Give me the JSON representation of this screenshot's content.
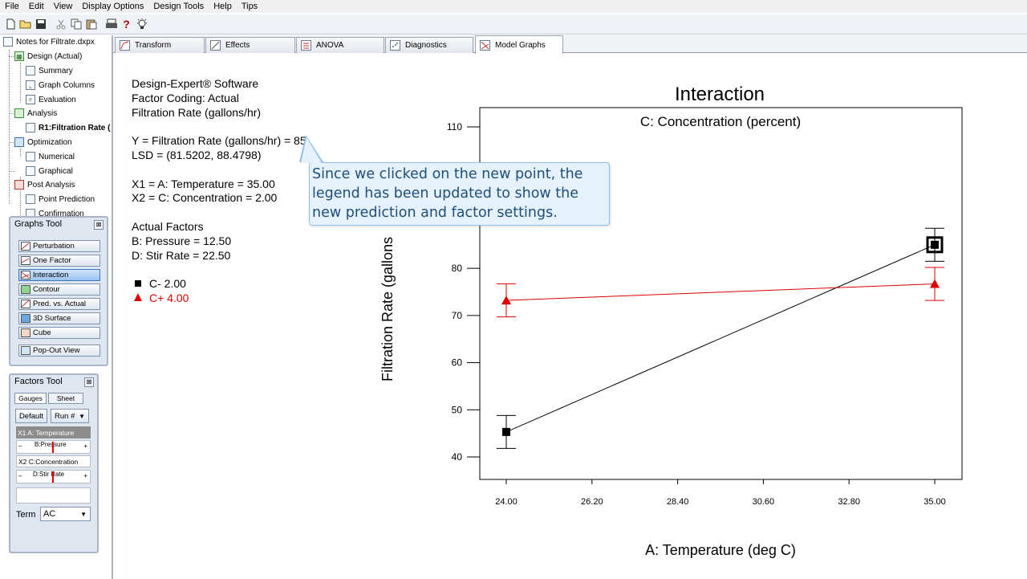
{
  "menu": [
    "File",
    "Edit",
    "View",
    "Display Options",
    "Design Tools",
    "Help",
    "Tips"
  ],
  "toolbar": {
    "icons": [
      "new-icon",
      "open-icon",
      "save-icon",
      "cut-icon",
      "copy-icon",
      "paste-icon",
      "print-icon",
      "help-icon",
      "tip-icon"
    ],
    "help_glyph": "?"
  },
  "tree": {
    "root": "Notes for Filtrate.dxpx",
    "items": [
      "Design (Actual)",
      "Summary",
      "Graph Columns",
      "Evaluation",
      "Analysis",
      "R1:Filtration Rate (",
      "Optimization",
      "Numerical",
      "Graphical",
      "Post Analysis",
      "Point Prediction",
      "Confirmation"
    ]
  },
  "graphs_tool": {
    "title": "Graphs Tool",
    "close": "⊠",
    "buttons": [
      "Perturbation",
      "One Factor",
      "Interaction",
      "Contour",
      "Pred. vs. Actual",
      "3D Surface",
      "Cube"
    ],
    "active": "Interaction",
    "popout": "Pop-Out View"
  },
  "factors_tool": {
    "title": "Factors Tool",
    "close": "⊠",
    "gauges": "Gauges",
    "sheet": "Sheet",
    "default": "Default",
    "run": "Run #",
    "x1": "X1  A: Temperature",
    "pressure": "B:Pressure",
    "x2": "X2  C:Concentration",
    "stir": "D:Stir Rate",
    "minus": "–",
    "plus": "+",
    "term_label": "Term",
    "term_value": "AC"
  },
  "tabs": [
    "Transform",
    "Effects",
    "ANOVA",
    "Diagnostics",
    "Model Graphs"
  ],
  "active_tab": "Model Graphs",
  "legend": {
    "software": "Design-Expert® Software",
    "coding": "Factor Coding: Actual",
    "response": "Filtration Rate (gallons/hr)",
    "y_line": "Y = Filtration Rate (gallons/hr) = 85",
    "lsd": "LSD = (81.5202, 88.4798)",
    "x1": "X1 = A: Temperature = 35.00",
    "x2": "X2 = C: Concentration = 2.00",
    "actual_factors": "Actual Factors",
    "b": "B: Pressure = 12.50",
    "d": "D: Stir Rate = 22.50",
    "c_minus": "C- 2.00",
    "c_plus": "C+ 4.00"
  },
  "callout": {
    "line1": "Since we clicked on the new point, the",
    "line2": "legend has been updated to show the",
    "line3": "new prediction and factor settings."
  },
  "chart_data": {
    "type": "line",
    "title": "Interaction",
    "subtitle": "C: Concentration (percent)",
    "xlabel": "A: Temperature (deg C)",
    "ylabel": "Filtration Rate (gallons",
    "xlim": [
      24.0,
      35.0
    ],
    "ylim": [
      35,
      112
    ],
    "x_ticks": [
      "24.00",
      "26.20",
      "28.40",
      "30.60",
      "32.80",
      "35.00"
    ],
    "y_ticks": [
      40,
      50,
      60,
      70,
      80,
      110
    ],
    "x": [
      24.0,
      35.0
    ],
    "series": [
      {
        "name": "C- 2.00",
        "values": [
          45.3,
          85.0
        ],
        "lsd_low": [
          41.8,
          81.5
        ],
        "lsd_high": [
          48.8,
          88.5
        ],
        "color": "#000000",
        "marker": "square"
      },
      {
        "name": "C+ 4.00",
        "values": [
          73.2,
          76.7
        ],
        "lsd_low": [
          69.7,
          73.2
        ],
        "lsd_high": [
          76.7,
          80.2
        ],
        "color": "#e00000",
        "marker": "triangle"
      }
    ],
    "selected_point": {
      "series": "C- 2.00",
      "x": 35.0,
      "y": 85.0
    },
    "grid": false,
    "legend": "none"
  },
  "colors": {
    "callout_text": "#1f4e79",
    "callout_bg": "#e6f2fb",
    "red_series": "#e00000"
  }
}
